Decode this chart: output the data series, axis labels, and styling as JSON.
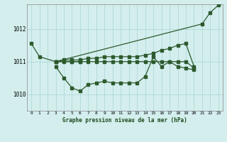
{
  "title": "Graphe pression niveau de la mer (hPa)",
  "background_color": "#d4eeee",
  "grid_color": "#b0d8d8",
  "line_color": "#2d5a2d",
  "ylim": [
    1009.5,
    1012.75
  ],
  "yticks": [
    1010,
    1011,
    1012
  ],
  "x_ticks": [
    0,
    1,
    2,
    3,
    4,
    5,
    6,
    7,
    8,
    9,
    10,
    11,
    12,
    13,
    14,
    15,
    16,
    17,
    18,
    19,
    20,
    21,
    22,
    23
  ],
  "line1": {
    "x": [
      0,
      1,
      3,
      5,
      6
    ],
    "y": [
      1011.55,
      1011.15,
      1011.0,
      1011.0,
      1011.0
    ]
  },
  "line2": {
    "x": [
      3,
      4,
      5,
      6,
      7,
      8,
      9,
      10,
      11,
      12,
      13,
      14,
      15,
      16,
      17,
      18,
      19,
      20
    ],
    "y": [
      1010.85,
      1010.5,
      1010.2,
      1010.1,
      1010.3,
      1010.35,
      1010.4,
      1010.35,
      1010.35,
      1010.35,
      1010.35,
      1010.55,
      1011.15,
      1010.85,
      1011.0,
      1010.85,
      1010.8,
      1010.75
    ]
  },
  "line3": {
    "x": [
      3,
      4,
      5,
      6,
      7,
      8,
      9,
      10,
      11,
      12,
      13,
      14,
      15,
      16,
      17,
      18,
      19,
      20
    ],
    "y": [
      1011.0,
      1011.0,
      1011.0,
      1011.0,
      1011.0,
      1011.0,
      1011.0,
      1011.0,
      1011.0,
      1011.0,
      1011.0,
      1011.0,
      1011.0,
      1011.0,
      1011.0,
      1011.0,
      1011.0,
      1010.8
    ]
  },
  "line4": {
    "x": [
      3,
      4,
      5,
      6,
      7,
      8,
      9,
      10,
      11,
      12,
      13,
      14,
      15,
      16,
      17,
      18,
      19,
      20
    ],
    "y": [
      1011.0,
      1011.05,
      1011.05,
      1011.05,
      1011.1,
      1011.1,
      1011.15,
      1011.15,
      1011.15,
      1011.15,
      1011.15,
      1011.2,
      1011.25,
      1011.35,
      1011.4,
      1011.5,
      1011.55,
      1010.85
    ]
  },
  "line5": {
    "x": [
      3,
      21,
      22,
      23
    ],
    "y": [
      1011.0,
      1012.15,
      1012.5,
      1012.72
    ]
  }
}
